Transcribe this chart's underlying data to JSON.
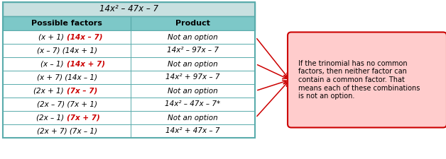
{
  "title": "14x² – 47x – 7",
  "col1_header": "Possible factors",
  "col2_header": "Product",
  "rows": [
    {
      "factors_black": "(x + 1) ",
      "factors_red": "(14x – 7)",
      "product": "Not an option",
      "is_option": false
    },
    {
      "factors_black": "(x – 7) (14x + 1)",
      "factors_red": null,
      "product": "14x² – 97x – 7",
      "is_option": true
    },
    {
      "factors_black": "(x – 1) ",
      "factors_red": "(14x + 7)",
      "product": "Not an option",
      "is_option": false
    },
    {
      "factors_black": "(x + 7) (14x – 1)",
      "factors_red": null,
      "product": "14x² + 97x – 7",
      "is_option": true
    },
    {
      "factors_black": "(2x + 1) ",
      "factors_red": "(7x – 7)",
      "product": "Not an option",
      "is_option": false
    },
    {
      "factors_black": "(2x – 7) (7x + 1)",
      "factors_red": null,
      "product": "14x² – 47x – 7*",
      "is_option": true
    },
    {
      "factors_black": "(2x – 1) ",
      "factors_red": "(7x + 7)",
      "product": "Not an option",
      "is_option": false
    },
    {
      "factors_black": "(2x + 7) (7x – 1)",
      "factors_red": null,
      "product": "14x² + 47x – 7",
      "is_option": true
    }
  ],
  "note_text": "If the trinomial has no common\nfactors, then neither factor can\ncontain a common factor. That\nmeans each of these combinations\nis not an option.",
  "table_header_bg": "#7dc8c8",
  "table_border": "#5aacac",
  "red_color": "#cc0000",
  "note_bg": "#ffcccc",
  "note_border": "#cc0000",
  "title_bg": "#c8e0e0",
  "figsize": [
    6.28,
    2.25
  ],
  "dpi": 100
}
